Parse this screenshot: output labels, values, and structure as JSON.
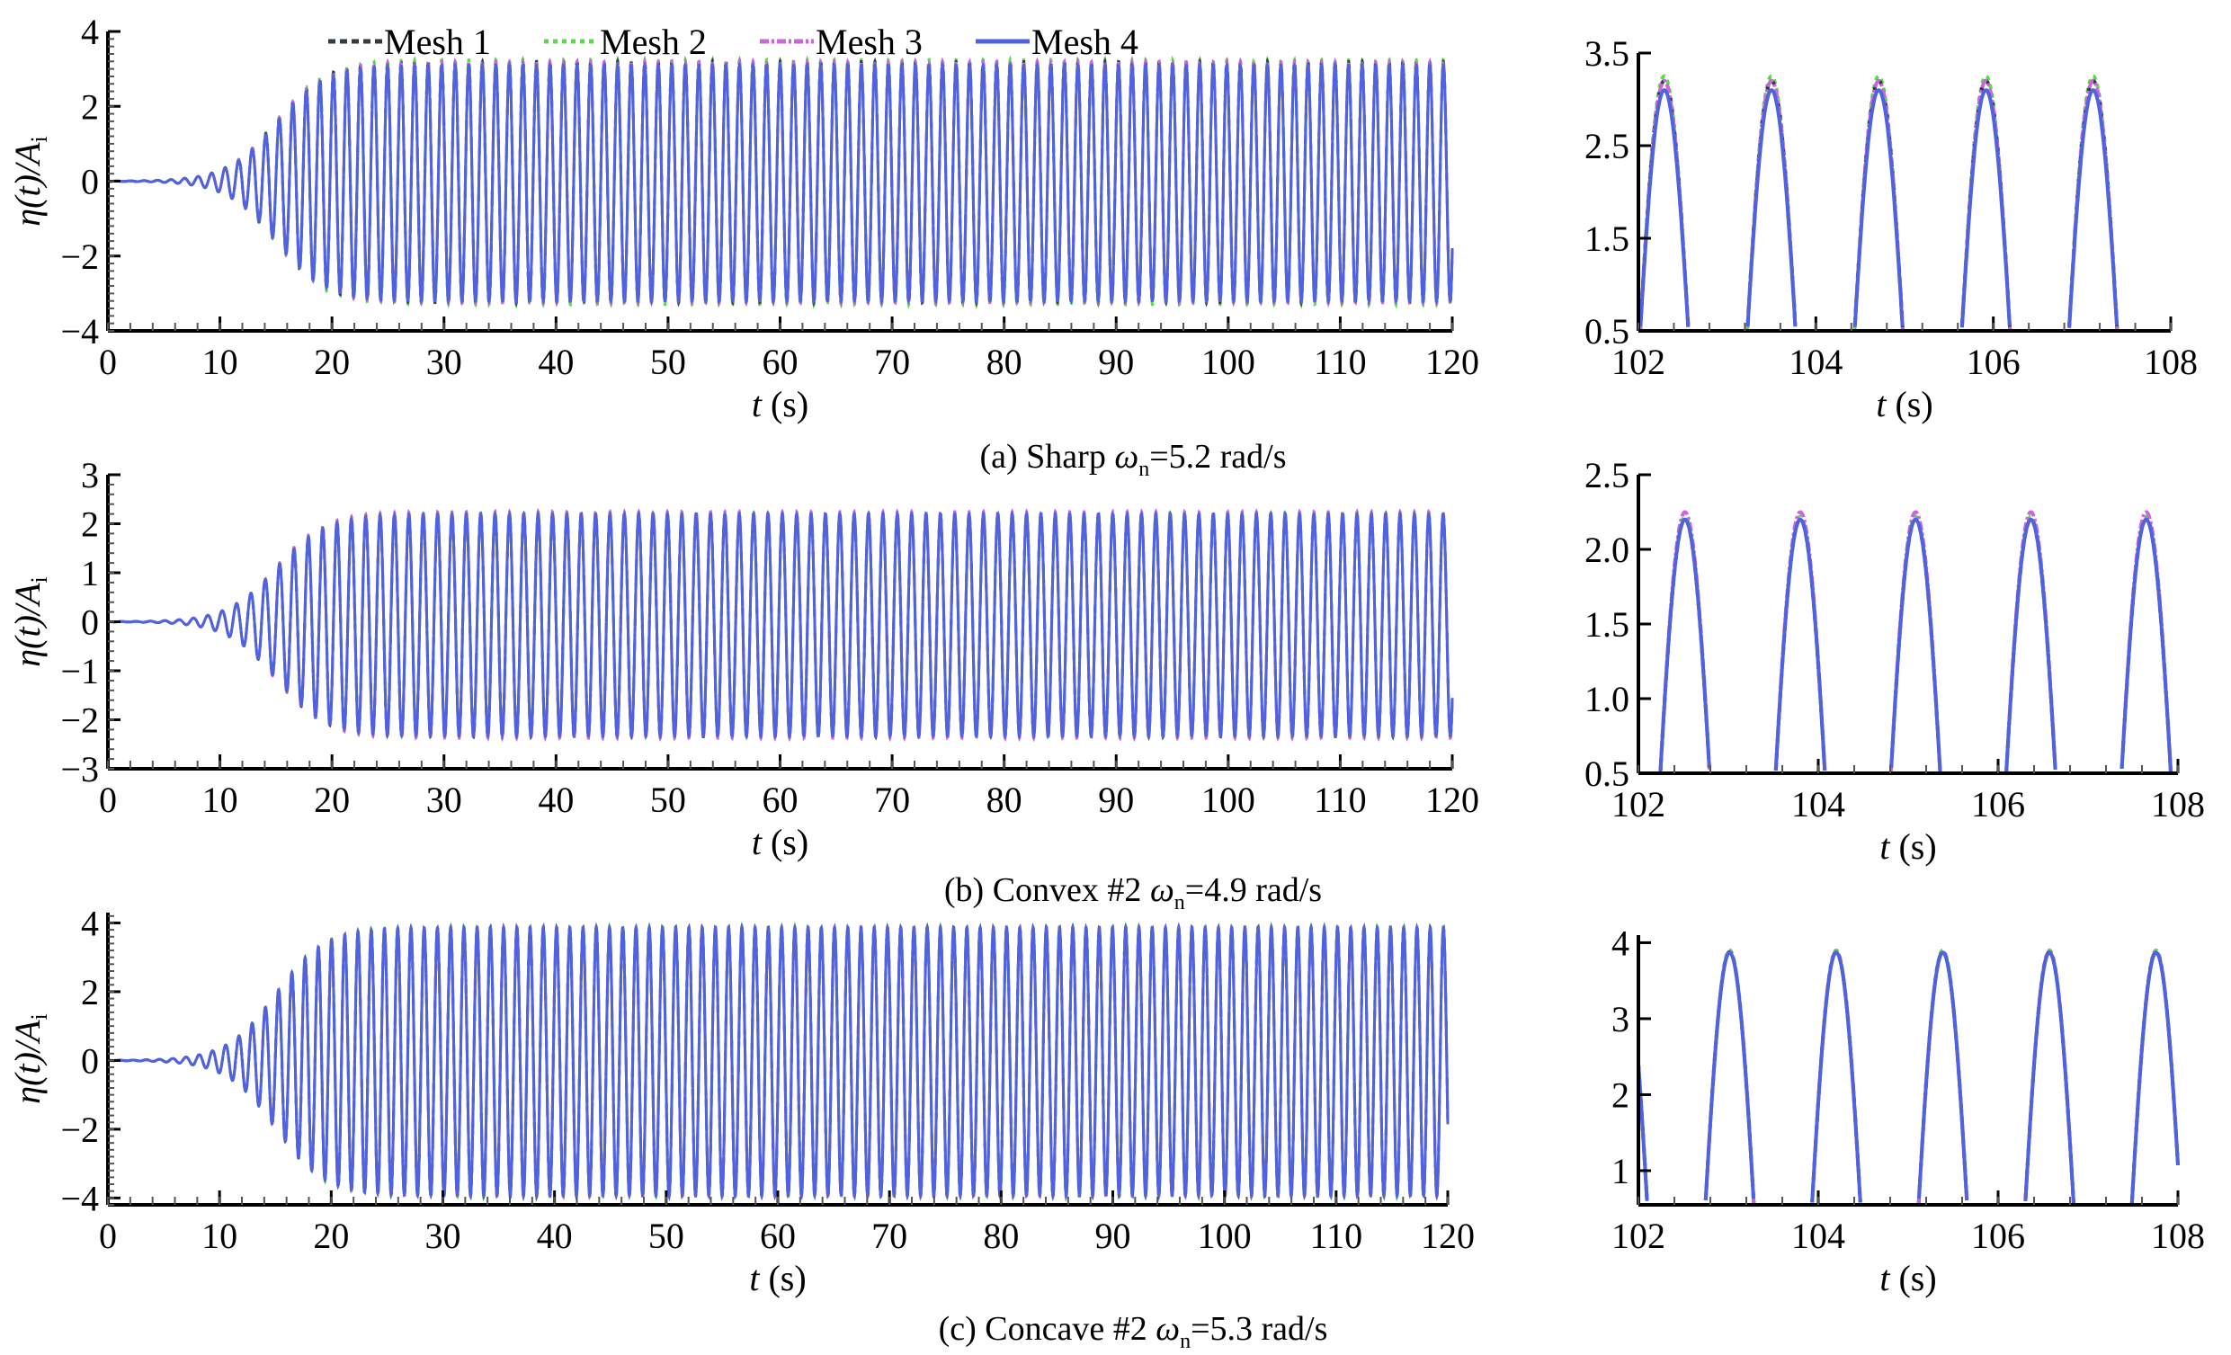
{
  "legend": [
    {
      "label": "Mesh 1",
      "color": "#333a40",
      "dash": "8,5"
    },
    {
      "label": "Mesh 2",
      "color": "#55e040",
      "dash": "5,5"
    },
    {
      "label": "Mesh 3",
      "color": "#cc66dd",
      "dash": "10,3,3,3"
    },
    {
      "label": "Mesh 4",
      "color": "#4f62e0",
      "dash": ""
    }
  ],
  "chart_data": [
    {
      "id": "a",
      "type": "line",
      "caption": {
        "pre": "(a) Sharp ",
        "sym": "ω",
        "sub": "n",
        "post": "=5.2 rad/s"
      },
      "omega": 5.2,
      "first_peak_zoom": 103.5,
      "amp_up": [
        3.2,
        3.25,
        3.2,
        3.1
      ],
      "amp_down": [
        3.25,
        3.3,
        3.25,
        3.2
      ],
      "full": {
        "xlabel": "t (s)",
        "ylabel": "η(t)/A_i",
        "xlim": [
          0,
          120
        ],
        "ylim": [
          -4,
          4
        ],
        "xticks": [
          0,
          10,
          20,
          30,
          40,
          50,
          60,
          70,
          80,
          90,
          100,
          110,
          120
        ],
        "yticks": [
          -4,
          -2,
          0,
          2,
          4
        ],
        "ytick_labels": [
          "−4",
          "−2",
          "0",
          "2",
          "4"
        ]
      },
      "zoom": {
        "xlabel": "t (s)",
        "xlim": [
          102,
          108
        ],
        "ylim": [
          0.5,
          3.5
        ],
        "xticks": [
          102,
          104,
          106,
          108
        ],
        "yticks": [
          0.5,
          1.5,
          2.5,
          3.5
        ],
        "ytick_labels": [
          "0.5",
          "1.5",
          "2.5",
          "3.5"
        ]
      }
    },
    {
      "id": "b",
      "type": "line",
      "caption": {
        "pre": "(b) Convex #2 ",
        "sym": "ω",
        "sub": "n",
        "post": "=4.9 rad/s"
      },
      "omega": 4.9,
      "first_peak_zoom": 103.8,
      "amp_up": [
        2.2,
        2.22,
        2.25,
        2.2
      ],
      "amp_down": [
        2.35,
        2.35,
        2.38,
        2.33
      ],
      "full": {
        "xlabel": "t (s)",
        "ylabel": "η(t)/A_i",
        "xlim": [
          0,
          120
        ],
        "ylim": [
          -3,
          3
        ],
        "xticks": [
          0,
          10,
          20,
          30,
          40,
          50,
          60,
          70,
          80,
          90,
          100,
          110,
          120
        ],
        "yticks": [
          -3,
          -2,
          -1,
          0,
          1,
          2,
          3
        ],
        "ytick_labels": [
          "−3",
          "−2",
          "−1",
          "0",
          "1",
          "2",
          "3"
        ]
      },
      "zoom": {
        "xlabel": "t (s)",
        "xlim": [
          102,
          108
        ],
        "ylim": [
          0.5,
          2.5
        ],
        "xticks": [
          102,
          104,
          106,
          108
        ],
        "yticks": [
          0.5,
          1.0,
          1.5,
          2.0,
          2.5
        ],
        "ytick_labels": [
          "0.5",
          "1.0",
          "1.5",
          "2.0",
          "2.5"
        ]
      }
    },
    {
      "id": "c",
      "type": "line",
      "caption": {
        "pre": "(c) Concave #2 ",
        "sym": "ω",
        "sub": "n",
        "post": "=5.3 rad/s"
      },
      "omega": 5.3,
      "first_peak_zoom": 104.2,
      "amp_up": [
        3.88,
        3.9,
        3.88,
        3.87
      ],
      "amp_down": [
        3.95,
        3.97,
        3.95,
        3.93
      ],
      "full": {
        "xlabel": "t (s)",
        "ylabel": "η(t)/A_i",
        "xlim": [
          0,
          120
        ],
        "ylim": [
          -4.2,
          4.3
        ],
        "xticks": [
          0,
          10,
          20,
          30,
          40,
          50,
          60,
          70,
          80,
          90,
          100,
          110,
          120
        ],
        "yticks": [
          -4,
          -2,
          0,
          2,
          4
        ],
        "ytick_labels": [
          "−4",
          "−2",
          "0",
          "2",
          "4"
        ]
      },
      "zoom": {
        "xlabel": "t (s)",
        "xlim": [
          102,
          108
        ],
        "ylim": [
          0.55,
          4.1
        ],
        "xticks": [
          102,
          104,
          106,
          108
        ],
        "yticks": [
          1,
          2,
          3,
          4
        ],
        "ytick_labels": [
          "1",
          "2",
          "3",
          "4"
        ]
      }
    }
  ]
}
